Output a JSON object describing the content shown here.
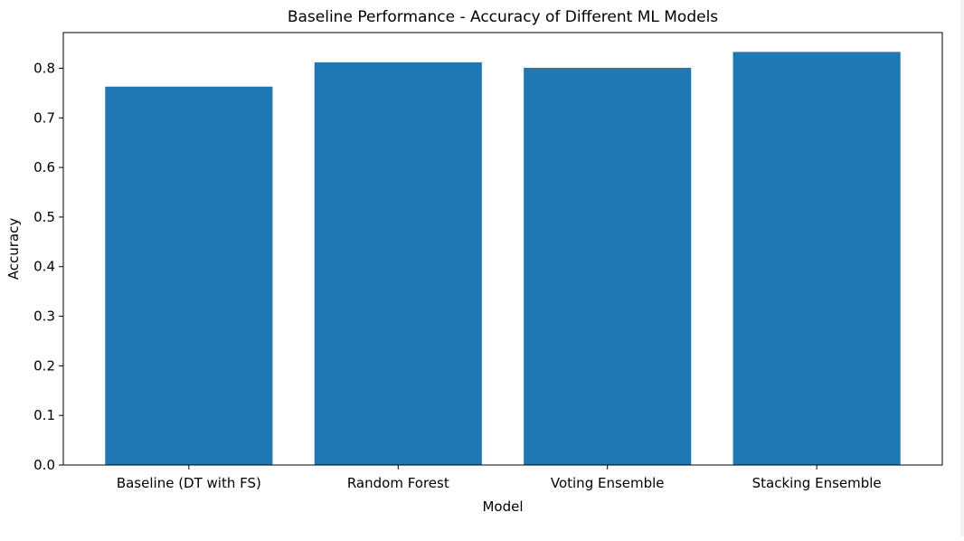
{
  "chart_data": {
    "type": "bar",
    "title": "Baseline Performance - Accuracy of Different ML Models",
    "xlabel": "Model",
    "ylabel": "Accuracy",
    "categories": [
      "Baseline (DT with FS)",
      "Random Forest",
      "Voting Ensemble",
      "Stacking Ensemble"
    ],
    "values": [
      0.763,
      0.812,
      0.801,
      0.833
    ],
    "ylim": [
      0,
      0.872
    ],
    "yticks": [
      0.0,
      0.1,
      0.2,
      0.3,
      0.4,
      0.5,
      0.6,
      0.7,
      0.8
    ],
    "ytick_labels": [
      "0.0",
      "0.1",
      "0.2",
      "0.3",
      "0.4",
      "0.5",
      "0.6",
      "0.7",
      "0.8"
    ],
    "grid": false,
    "legend": "none",
    "bar_color": "#1f77b4"
  }
}
